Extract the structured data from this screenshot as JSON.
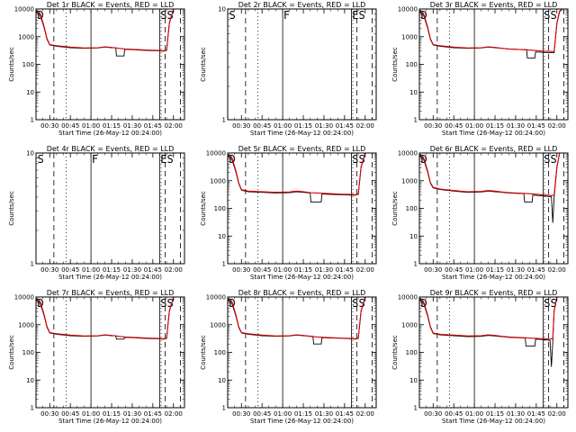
{
  "chart_data": [
    {
      "type": "line",
      "title": "Det 1r BLACK = Events, RED = LLD",
      "xlabel": "Start Time (26-May-12 00:24:00)",
      "ylabel": "Counts/sec",
      "yscale": "log",
      "ylim": [
        1,
        10000
      ],
      "xlim_minutes_after_midnight": [
        20,
        128
      ],
      "x_ticks": [
        "00:30",
        "00:45",
        "01:00",
        "01:15",
        "01:30",
        "01:45",
        "02:00"
      ],
      "y_ticks": [
        "1",
        "10",
        "100",
        "1000",
        "10000"
      ],
      "markers": [
        "D",
        "SS"
      ],
      "has_data": true,
      "series": [
        {
          "color": "#000000",
          "x": [
            20,
            23,
            26,
            28,
            30,
            35,
            45,
            55,
            65,
            70,
            75,
            78,
            78.5,
            84,
            84.5,
            90,
            100,
            110,
            113,
            115,
            117,
            120
          ],
          "y": [
            8000,
            6000,
            2000,
            800,
            500,
            450,
            400,
            380,
            390,
            420,
            400,
            400,
            200,
            200,
            350,
            340,
            320,
            310,
            300,
            320,
            3000,
            10000
          ]
        },
        {
          "color": "#d40000",
          "x": [
            20,
            23,
            26,
            28,
            30,
            35,
            45,
            55,
            65,
            70,
            75,
            80,
            85,
            90,
            100,
            110,
            113,
            115,
            117,
            120
          ],
          "y": [
            9000,
            7000,
            2200,
            850,
            520,
            470,
            420,
            390,
            400,
            430,
            410,
            380,
            360,
            350,
            330,
            320,
            310,
            330,
            3200,
            10000
          ]
        }
      ]
    },
    {
      "type": "line",
      "title": "Det 2r BLACK = Events, RED = LLD",
      "xlabel": "Start Time (26-May-12 00:24:00)",
      "ylabel": "Counts/sec",
      "yscale": "log",
      "ylim": [
        1,
        10
      ],
      "xlim_minutes_after_midnight": [
        20,
        128
      ],
      "x_ticks": [
        "00:30",
        "00:45",
        "01:00",
        "01:15",
        "01:30",
        "01:45",
        "02:00"
      ],
      "y_ticks": [
        "1",
        "10"
      ],
      "markers": [
        "S",
        "F",
        "ES"
      ],
      "has_data": false,
      "series": []
    },
    {
      "type": "line",
      "title": "Det 3r BLACK = Events, RED = LLD",
      "xlabel": "Start Time (26-May-12 00:24:00)",
      "ylabel": "Counts/sec",
      "yscale": "log",
      "ylim": [
        1,
        10000
      ],
      "xlim_minutes_after_midnight": [
        20,
        128
      ],
      "x_ticks": [
        "00:30",
        "00:45",
        "01:00",
        "01:15",
        "01:30",
        "01:45",
        "02:00"
      ],
      "y_ticks": [
        "1",
        "10",
        "100",
        "1000",
        "10000"
      ],
      "markers": [
        "D",
        "SS"
      ],
      "has_data": true,
      "series": [
        {
          "color": "#000000",
          "x": [
            20,
            23,
            26,
            28,
            30,
            35,
            45,
            55,
            65,
            70,
            75,
            80,
            85,
            90,
            98,
            98.5,
            104,
            104.5,
            110,
            118,
            120,
            122,
            124
          ],
          "y": [
            8000,
            6000,
            2000,
            800,
            500,
            450,
            400,
            380,
            390,
            420,
            400,
            380,
            360,
            350,
            340,
            170,
            170,
            280,
            270,
            260,
            3000,
            8000,
            10000
          ]
        },
        {
          "color": "#d40000",
          "x": [
            20,
            23,
            26,
            28,
            30,
            35,
            45,
            55,
            65,
            70,
            75,
            80,
            85,
            90,
            100,
            110,
            118,
            120,
            122,
            124
          ],
          "y": [
            9000,
            7000,
            2200,
            850,
            520,
            470,
            420,
            390,
            400,
            430,
            410,
            380,
            360,
            350,
            330,
            300,
            290,
            3200,
            8500,
            10000
          ]
        }
      ]
    },
    {
      "type": "line",
      "title": "Det 4r BLACK = Events, RED = LLD",
      "xlabel": "Start Time (26-May-12 00:24:00)",
      "ylabel": "Counts/sec",
      "yscale": "log",
      "ylim": [
        1,
        10
      ],
      "xlim_minutes_after_midnight": [
        20,
        128
      ],
      "x_ticks": [
        "00:30",
        "00:45",
        "01:00",
        "01:15",
        "01:30",
        "01:45",
        "02:00"
      ],
      "y_ticks": [
        "1",
        "10"
      ],
      "markers": [
        "S",
        "F",
        "ES"
      ],
      "has_data": false,
      "series": []
    },
    {
      "type": "line",
      "title": "Det 5r BLACK = Events, RED = LLD",
      "xlabel": "Start Time (26-May-12 00:24:00)",
      "ylabel": "Counts/sec",
      "yscale": "log",
      "ylim": [
        1,
        10000
      ],
      "xlim_minutes_after_midnight": [
        20,
        128
      ],
      "x_ticks": [
        "00:30",
        "00:45",
        "01:00",
        "01:15",
        "01:30",
        "01:45",
        "02:00"
      ],
      "y_ticks": [
        "1",
        "10",
        "100",
        "1000",
        "10000"
      ],
      "markers": [
        "D",
        "SS"
      ],
      "has_data": true,
      "series": [
        {
          "color": "#000000",
          "x": [
            20,
            23,
            26,
            28,
            30,
            35,
            45,
            55,
            65,
            70,
            75,
            80,
            80.5,
            88,
            88.5,
            95,
            105,
            110,
            113,
            115,
            117,
            120
          ],
          "y": [
            8000,
            6000,
            2000,
            800,
            450,
            400,
            380,
            360,
            370,
            400,
            380,
            360,
            170,
            170,
            330,
            320,
            310,
            300,
            300,
            320,
            3000,
            10000
          ]
        },
        {
          "color": "#d40000",
          "x": [
            20,
            23,
            26,
            28,
            30,
            35,
            45,
            55,
            65,
            70,
            75,
            80,
            85,
            90,
            100,
            110,
            113,
            115,
            117,
            120
          ],
          "y": [
            9000,
            7000,
            2200,
            850,
            470,
            420,
            400,
            380,
            390,
            420,
            400,
            370,
            360,
            350,
            330,
            320,
            310,
            330,
            3200,
            10000
          ]
        }
      ]
    },
    {
      "type": "line",
      "title": "Det 6r BLACK = Events, RED = LLD",
      "xlabel": "Start Time (26-May-12 00:24:00)",
      "ylabel": "Counts/sec",
      "yscale": "log",
      "ylim": [
        1,
        10000
      ],
      "xlim_minutes_after_midnight": [
        20,
        128
      ],
      "x_ticks": [
        "00:30",
        "00:45",
        "01:00",
        "01:15",
        "01:30",
        "01:45",
        "02:00"
      ],
      "y_ticks": [
        "1",
        "10",
        "100",
        "1000",
        "10000"
      ],
      "markers": [
        "D",
        "SS"
      ],
      "has_data": true,
      "series": [
        {
          "color": "#000000",
          "x": [
            20,
            23,
            26,
            28,
            30,
            35,
            45,
            55,
            65,
            70,
            75,
            80,
            85,
            90,
            96,
            96.5,
            102,
            102.5,
            110,
            116,
            117,
            118,
            120,
            122
          ],
          "y": [
            8000,
            6000,
            2000,
            800,
            550,
            480,
            420,
            380,
            390,
            420,
            400,
            380,
            360,
            350,
            340,
            170,
            170,
            300,
            280,
            260,
            30,
            250,
            3000,
            10000
          ]
        },
        {
          "color": "#d40000",
          "x": [
            20,
            23,
            26,
            28,
            30,
            35,
            45,
            55,
            65,
            70,
            75,
            80,
            85,
            90,
            100,
            110,
            116,
            118,
            120,
            122
          ],
          "y": [
            9000,
            7000,
            2200,
            850,
            580,
            500,
            440,
            400,
            410,
            440,
            420,
            390,
            370,
            360,
            340,
            310,
            290,
            300,
            3200,
            10000
          ]
        }
      ]
    },
    {
      "type": "line",
      "title": "Det 7r BLACK = Events, RED = LLD",
      "xlabel": "Start Time (26-May-12 00:24:00)",
      "ylabel": "Counts/sec",
      "yscale": "log",
      "ylim": [
        1,
        10000
      ],
      "xlim_minutes_after_midnight": [
        20,
        128
      ],
      "x_ticks": [
        "00:30",
        "00:45",
        "01:00",
        "01:15",
        "01:30",
        "01:45",
        "02:00"
      ],
      "y_ticks": [
        "1",
        "10",
        "100",
        "1000",
        "10000"
      ],
      "markers": [
        "D",
        "SS"
      ],
      "has_data": true,
      "series": [
        {
          "color": "#000000",
          "x": [
            20,
            23,
            26,
            28,
            30,
            35,
            45,
            55,
            65,
            70,
            75,
            78,
            78.5,
            84,
            84.5,
            90,
            100,
            110,
            113,
            115,
            117,
            120
          ],
          "y": [
            8000,
            6000,
            2000,
            800,
            500,
            450,
            400,
            380,
            390,
            420,
            400,
            400,
            300,
            300,
            350,
            340,
            320,
            310,
            300,
            320,
            3000,
            10000
          ]
        },
        {
          "color": "#d40000",
          "x": [
            20,
            23,
            26,
            28,
            30,
            35,
            45,
            55,
            65,
            70,
            75,
            80,
            85,
            90,
            100,
            110,
            113,
            115,
            117,
            120
          ],
          "y": [
            9000,
            7000,
            2200,
            850,
            520,
            470,
            420,
            390,
            400,
            430,
            410,
            380,
            360,
            350,
            330,
            320,
            310,
            330,
            3200,
            10000
          ]
        }
      ]
    },
    {
      "type": "line",
      "title": "Det 8r BLACK = Events, RED = LLD",
      "xlabel": "Start Time (26-May-12 00:24:00)",
      "ylabel": "Counts/sec",
      "yscale": "log",
      "ylim": [
        1,
        10000
      ],
      "xlim_minutes_after_midnight": [
        20,
        128
      ],
      "x_ticks": [
        "00:30",
        "00:45",
        "01:00",
        "01:15",
        "01:30",
        "01:45",
        "02:00"
      ],
      "y_ticks": [
        "1",
        "10",
        "100",
        "1000",
        "10000"
      ],
      "markers": [
        "D",
        "SS"
      ],
      "has_data": true,
      "series": [
        {
          "color": "#000000",
          "x": [
            20,
            23,
            26,
            28,
            30,
            35,
            45,
            55,
            65,
            70,
            75,
            82,
            82.5,
            88,
            88.5,
            95,
            105,
            110,
            113,
            115,
            117,
            120
          ],
          "y": [
            8000,
            6000,
            2000,
            800,
            500,
            450,
            400,
            380,
            390,
            420,
            400,
            380,
            200,
            200,
            340,
            330,
            320,
            310,
            300,
            320,
            3000,
            10000
          ]
        },
        {
          "color": "#d40000",
          "x": [
            20,
            23,
            26,
            28,
            30,
            35,
            45,
            55,
            65,
            70,
            75,
            80,
            85,
            90,
            100,
            110,
            113,
            115,
            117,
            120
          ],
          "y": [
            9000,
            7000,
            2200,
            850,
            520,
            470,
            420,
            390,
            400,
            430,
            410,
            380,
            360,
            350,
            330,
            320,
            310,
            330,
            3200,
            10000
          ]
        }
      ]
    },
    {
      "type": "line",
      "title": "Det 9r BLACK = Events, RED = LLD",
      "xlabel": "Start Time (26-May-12 00:24:00)",
      "ylabel": "Counts/sec",
      "yscale": "log",
      "ylim": [
        1,
        10000
      ],
      "xlim_minutes_after_midnight": [
        20,
        128
      ],
      "x_ticks": [
        "00:30",
        "00:45",
        "01:00",
        "01:15",
        "01:30",
        "01:45",
        "02:00"
      ],
      "y_ticks": [
        "1",
        "10",
        "100",
        "1000",
        "10000"
      ],
      "markers": [
        "D",
        "SS"
      ],
      "has_data": true,
      "series": [
        {
          "color": "#000000",
          "x": [
            20,
            23,
            26,
            28,
            30,
            35,
            45,
            55,
            65,
            70,
            75,
            80,
            85,
            90,
            97,
            97.5,
            104,
            104.5,
            110,
            115,
            116,
            117,
            118,
            120
          ],
          "y": [
            8000,
            6000,
            2000,
            800,
            480,
            430,
            400,
            370,
            380,
            410,
            390,
            370,
            350,
            340,
            330,
            170,
            170,
            300,
            290,
            270,
            30,
            250,
            3000,
            10000
          ]
        },
        {
          "color": "#d40000",
          "x": [
            20,
            23,
            26,
            28,
            30,
            35,
            45,
            55,
            65,
            70,
            75,
            80,
            85,
            90,
            100,
            110,
            115,
            117,
            118,
            120
          ],
          "y": [
            9000,
            7000,
            2200,
            850,
            500,
            450,
            420,
            390,
            400,
            430,
            410,
            380,
            360,
            350,
            330,
            310,
            300,
            310,
            3200,
            10000
          ]
        }
      ]
    }
  ],
  "event_lines": {
    "dashed": [
      33,
      114,
      125
    ],
    "dotted": [
      42,
      111
    ],
    "solid": [
      60,
      110
    ]
  },
  "colors": {
    "events": "#000000",
    "lld": "#d40000"
  }
}
